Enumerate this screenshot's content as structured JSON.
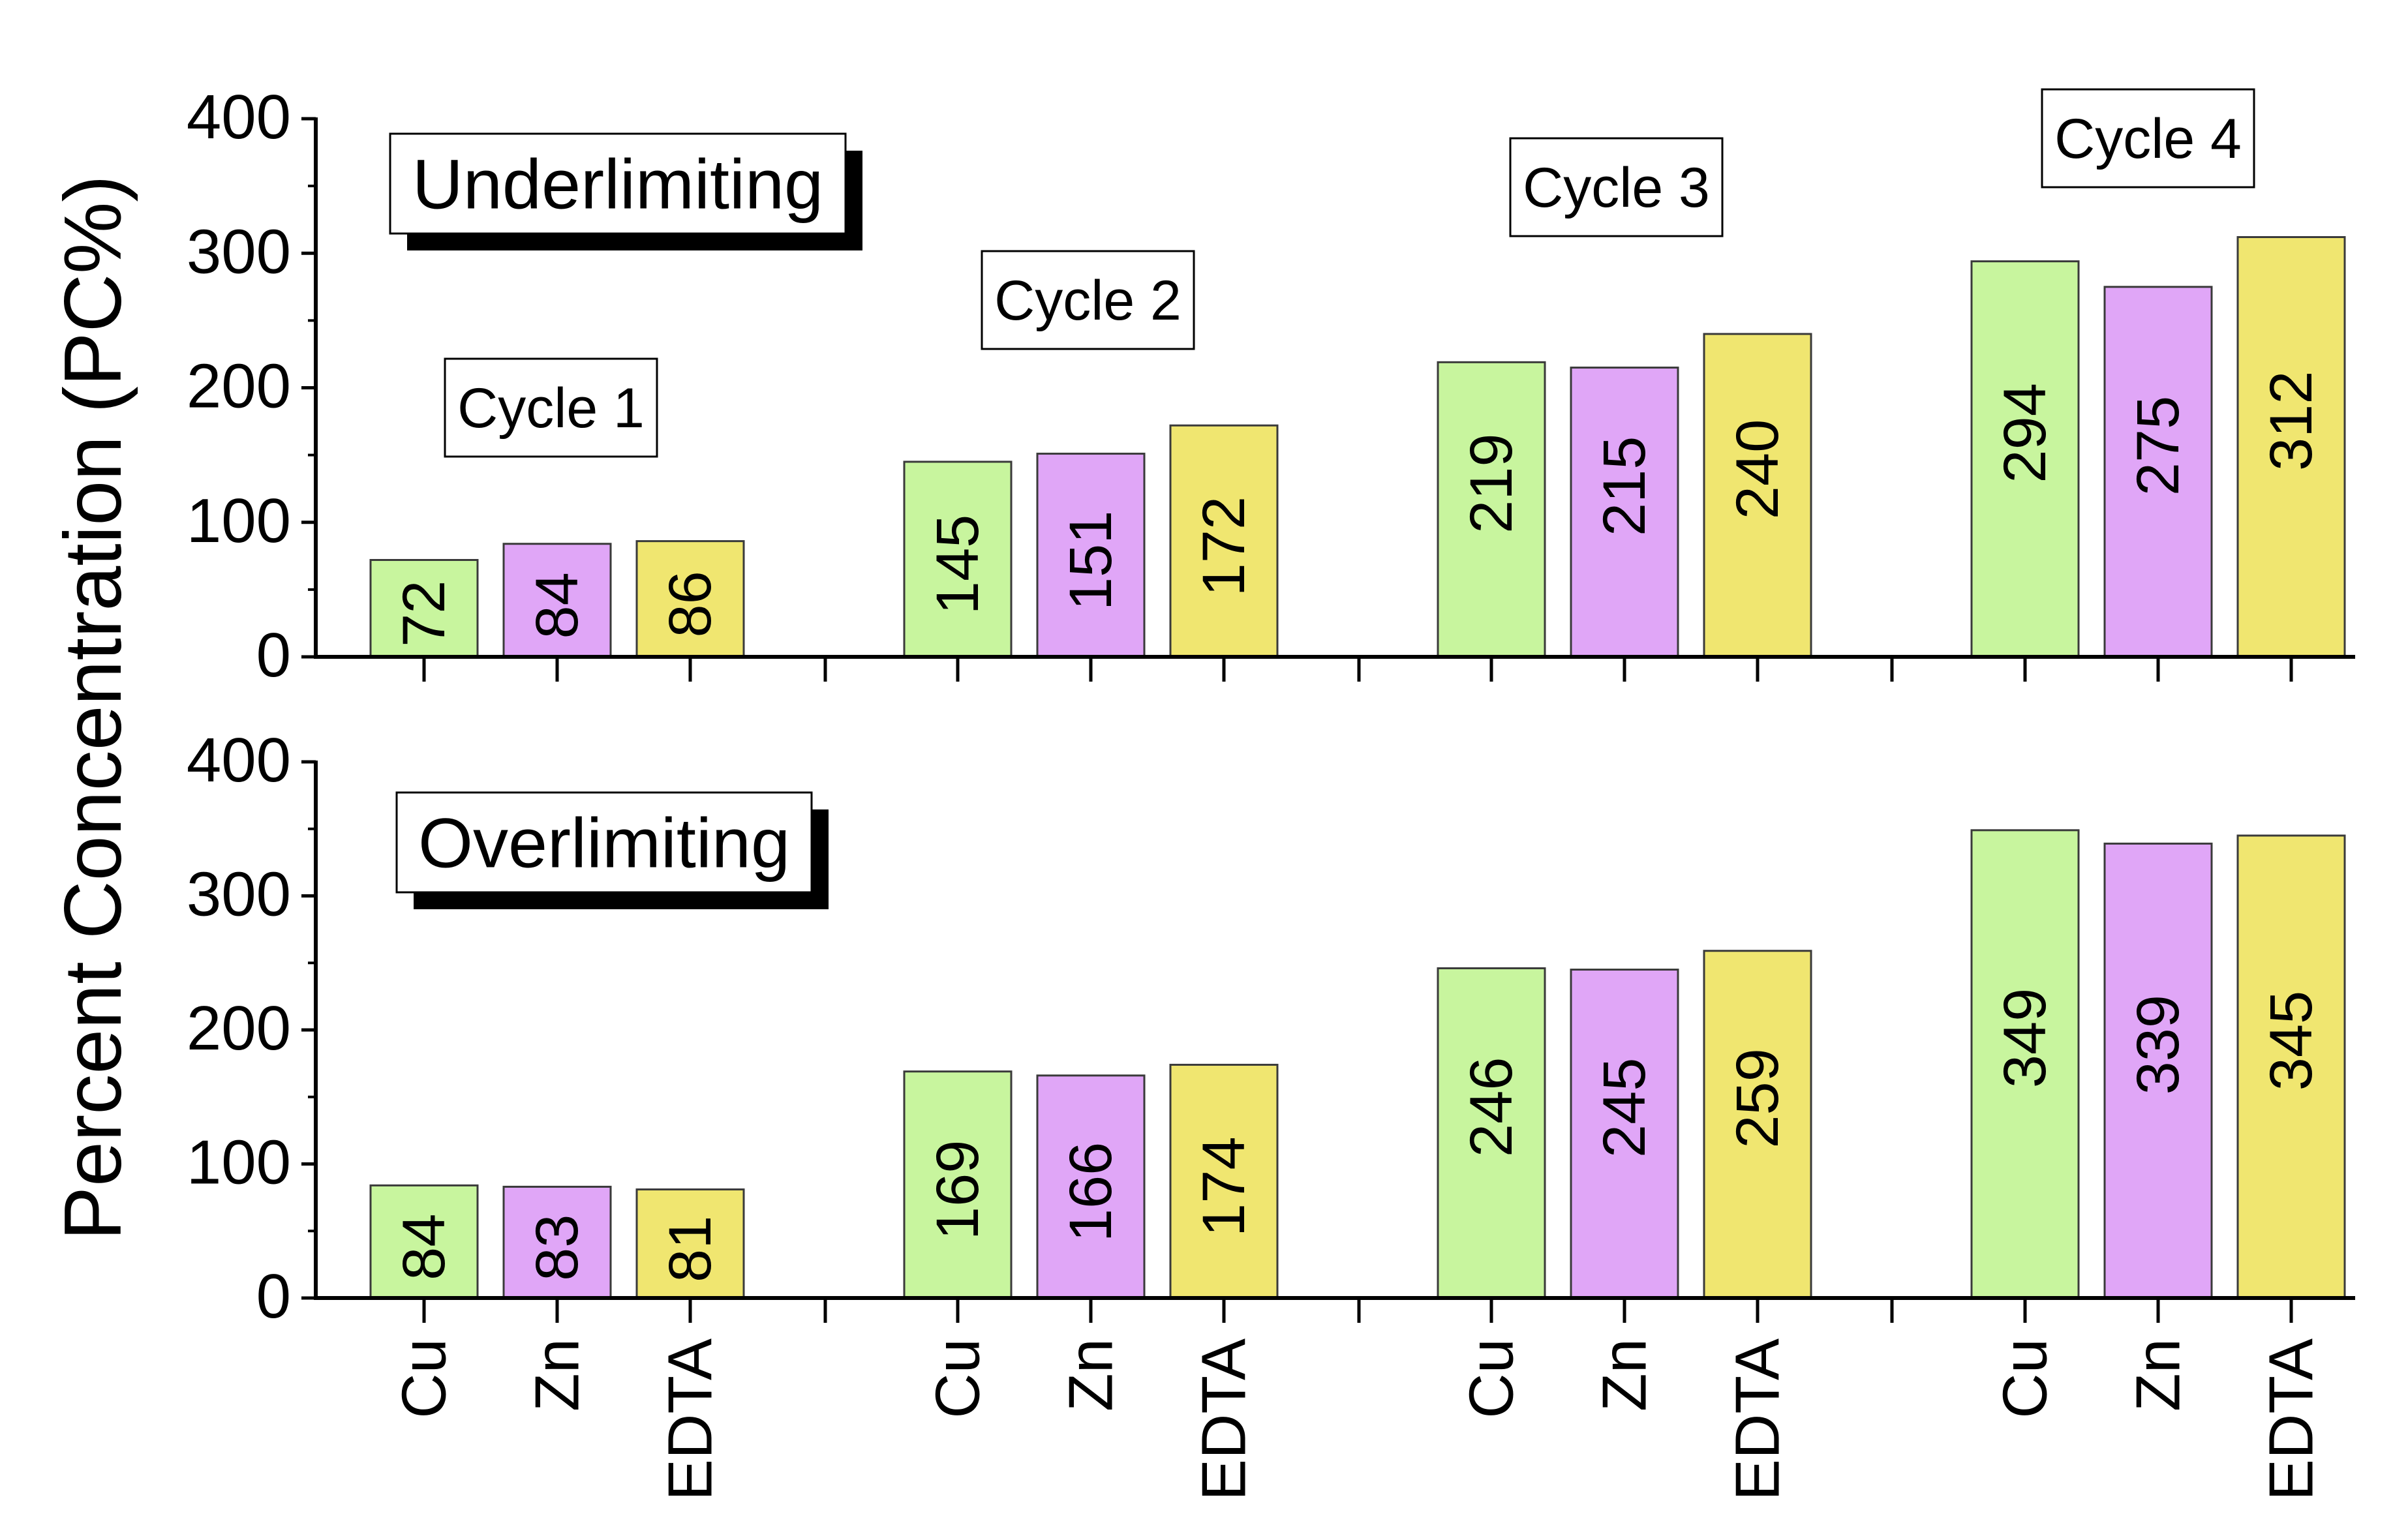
{
  "chart_data": {
    "type": "bar",
    "ylabel": "Percent Concentration (PC%)",
    "ylim": [
      0,
      400
    ],
    "yticks": [
      0,
      100,
      200,
      300,
      400
    ],
    "species": [
      "Cu",
      "Zn",
      "EDTA"
    ],
    "species_colors": {
      "Cu": "#c8f59e",
      "Zn": "#e0a6f7",
      "EDTA": "#f0e670"
    },
    "cycles": [
      "Cycle 1",
      "Cycle 2",
      "Cycle 3",
      "Cycle 4"
    ],
    "panels": [
      {
        "title": "Underlimiting",
        "ylabel": "Percent Concentration (PC%)",
        "series": [
          {
            "name": "Cu",
            "values": [
              72,
              145,
              219,
              294
            ]
          },
          {
            "name": "Zn",
            "values": [
              84,
              151,
              215,
              275
            ]
          },
          {
            "name": "EDTA",
            "values": [
              86,
              172,
              240,
              312
            ]
          }
        ]
      },
      {
        "title": "Overlimiting",
        "ylabel": "Percent Concentration (PC%)",
        "series": [
          {
            "name": "Cu",
            "values": [
              84,
              169,
              246,
              349
            ]
          },
          {
            "name": "Zn",
            "values": [
              83,
              166,
              245,
              339
            ]
          },
          {
            "name": "EDTA",
            "values": [
              81,
              174,
              259,
              345
            ]
          }
        ]
      }
    ]
  }
}
